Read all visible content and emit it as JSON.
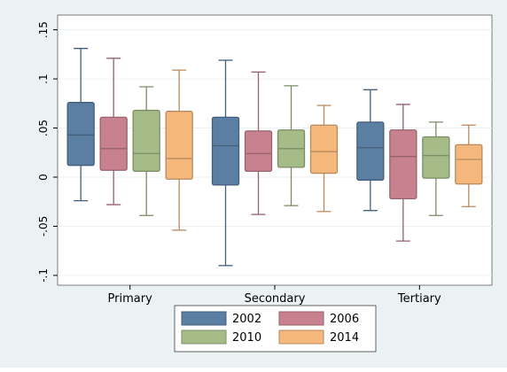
{
  "chart_data": {
    "type": "box",
    "title": "",
    "xlabel": "",
    "ylabel": "",
    "ylim": [
      -0.11,
      0.165
    ],
    "yticks": [
      -0.1,
      -0.05,
      0,
      0.05,
      0.1,
      0.15
    ],
    "ytick_labels": [
      "-.1",
      "-.05",
      "0",
      ".05",
      ".1",
      ".15"
    ],
    "grid": "horizontal",
    "legend": "bottom",
    "categories": [
      "Primary",
      "Secondary",
      "Tertiary"
    ],
    "series": [
      {
        "name": "2002",
        "color": "#5b7fa3",
        "boxes": [
          {
            "min": -0.024,
            "q1": 0.012,
            "median": 0.043,
            "q3": 0.076,
            "max": 0.131
          },
          {
            "min": -0.09,
            "q1": -0.008,
            "median": 0.032,
            "q3": 0.061,
            "max": 0.119
          },
          {
            "min": -0.034,
            "q1": -0.003,
            "median": 0.03,
            "q3": 0.056,
            "max": 0.089
          }
        ]
      },
      {
        "name": "2006",
        "color": "#c8828f",
        "boxes": [
          {
            "min": -0.028,
            "q1": 0.007,
            "median": 0.029,
            "q3": 0.061,
            "max": 0.121
          },
          {
            "min": -0.038,
            "q1": 0.006,
            "median": 0.024,
            "q3": 0.047,
            "max": 0.107
          },
          {
            "min": -0.065,
            "q1": -0.022,
            "median": 0.021,
            "q3": 0.048,
            "max": 0.074
          }
        ]
      },
      {
        "name": "2010",
        "color": "#a5bb88",
        "boxes": [
          {
            "min": -0.039,
            "q1": 0.006,
            "median": 0.024,
            "q3": 0.068,
            "max": 0.092
          },
          {
            "min": -0.029,
            "q1": 0.01,
            "median": 0.029,
            "q3": 0.048,
            "max": 0.093
          },
          {
            "min": -0.039,
            "q1": -0.001,
            "median": 0.022,
            "q3": 0.041,
            "max": 0.056
          }
        ]
      },
      {
        "name": "2014",
        "color": "#f4b87c",
        "boxes": [
          {
            "min": -0.054,
            "q1": -0.002,
            "median": 0.019,
            "q3": 0.067,
            "max": 0.109
          },
          {
            "min": -0.035,
            "q1": 0.004,
            "median": 0.026,
            "q3": 0.053,
            "max": 0.073
          },
          {
            "min": -0.03,
            "q1": -0.007,
            "median": 0.018,
            "q3": 0.033,
            "max": 0.053
          }
        ]
      }
    ]
  }
}
